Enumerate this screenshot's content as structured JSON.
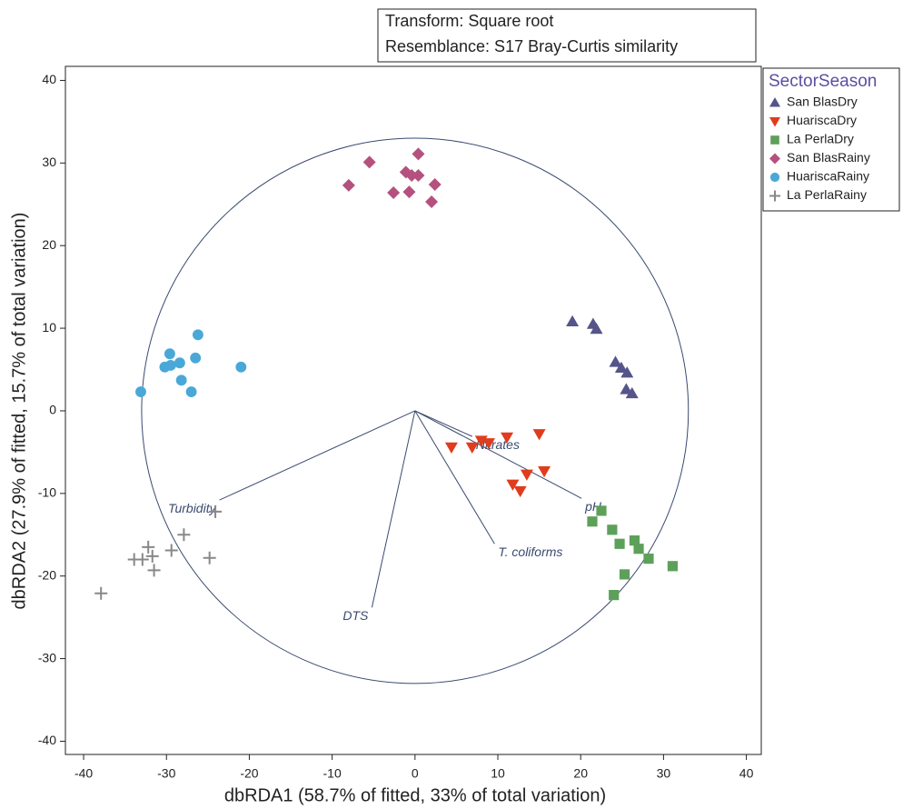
{
  "chart_data": {
    "type": "scatter",
    "annotation": [
      "Transform: Square root",
      "Resemblance: S17 Bray-Curtis similarity"
    ],
    "xlabel": "dbRDA1 (58.7% of fitted, 33% of total variation)",
    "ylabel": "dbRDA2 (27.9% of fitted, 15.7% of total variation)",
    "legend_title": "SectorSeason",
    "xlim": [
      -42.2,
      41.8
    ],
    "ylim": [
      -41.6,
      41.7
    ],
    "xticks": [
      -40,
      -30,
      -20,
      -10,
      0,
      10,
      20,
      30,
      40
    ],
    "yticks": [
      -40,
      -30,
      -20,
      -10,
      0,
      10,
      20,
      30,
      40
    ],
    "circle_radius": 33,
    "series": [
      {
        "name": "San BlasDry",
        "color": "#55558a",
        "marker": "triangle",
        "x": [
          19.0,
          21.5,
          21.9,
          24.2,
          24.9,
          25.6,
          25.5,
          26.2
        ],
        "y": [
          10.8,
          10.5,
          9.9,
          5.9,
          5.2,
          4.6,
          2.6,
          2.1
        ]
      },
      {
        "name": "HuariscaDry",
        "color": "#e03c1e",
        "marker": "triangle-down",
        "x": [
          4.4,
          6.9,
          8.0,
          8.9,
          11.1,
          15.0,
          13.5,
          11.8,
          12.7,
          15.6
        ],
        "y": [
          -4.4,
          -4.4,
          -3.6,
          -3.9,
          -3.2,
          -2.8,
          -7.7,
          -8.9,
          -9.7,
          -7.3
        ]
      },
      {
        "name": "La PerlaDry",
        "color": "#5da05a",
        "marker": "square",
        "x": [
          22.5,
          21.4,
          23.8,
          24.7,
          26.5,
          27.0,
          28.2,
          31.1,
          25.3,
          24.0
        ],
        "y": [
          -12.1,
          -13.4,
          -14.4,
          -16.1,
          -15.7,
          -16.7,
          -17.9,
          -18.8,
          -19.8,
          -22.3
        ]
      },
      {
        "name": "San BlasRainy",
        "color": "#b5517e",
        "marker": "diamond",
        "x": [
          -8.0,
          -5.5,
          -2.6,
          -1.1,
          -0.4,
          0.4,
          0.4,
          -0.7,
          2.4,
          2.0
        ],
        "y": [
          27.3,
          30.1,
          26.4,
          28.9,
          28.5,
          31.1,
          28.5,
          26.5,
          27.4,
          25.3
        ]
      },
      {
        "name": "HuariscaRainy",
        "color": "#4aa8d8",
        "marker": "circle",
        "x": [
          -33.1,
          -29.6,
          -30.2,
          -29.5,
          -28.4,
          -28.2,
          -27.0,
          -26.5,
          -26.2,
          -21.0
        ],
        "y": [
          2.3,
          6.9,
          5.3,
          5.5,
          5.8,
          3.7,
          2.3,
          6.4,
          9.2,
          5.3
        ]
      },
      {
        "name": "La PerlaRainy",
        "color": "#888888",
        "marker": "plus",
        "x": [
          -37.9,
          -33.9,
          -32.9,
          -32.2,
          -31.7,
          -31.5,
          -29.4,
          -27.9,
          -24.8,
          -24.1
        ],
        "y": [
          -22.1,
          -18.0,
          -18.0,
          -16.5,
          -17.6,
          -19.3,
          -16.9,
          -15.0,
          -17.8,
          -12.2
        ]
      }
    ],
    "vectors": [
      {
        "label": "Turbidity",
        "x": -23.6,
        "y": -10.8
      },
      {
        "label": "DTS",
        "x": -5.2,
        "y": -23.8
      },
      {
        "label": "T. coliforms",
        "x": 9.6,
        "y": -16.1
      },
      {
        "label": "pH",
        "x": 20.1,
        "y": -10.6
      },
      {
        "label": "Nitrates",
        "x": 6.9,
        "y": -3.1
      }
    ]
  }
}
